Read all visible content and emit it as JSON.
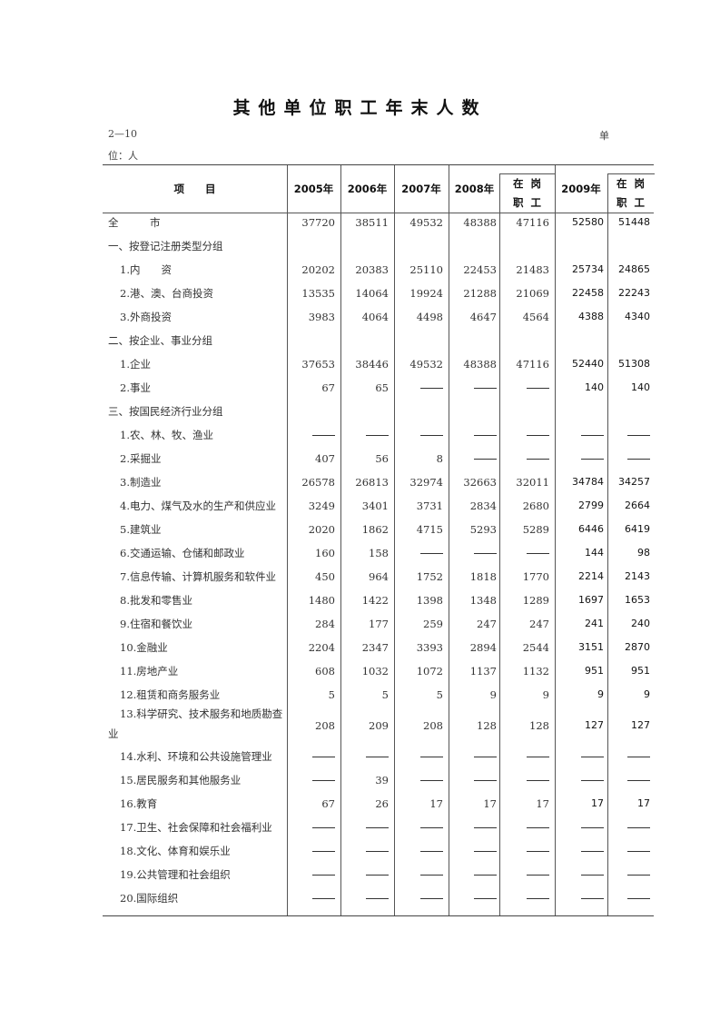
{
  "title": "其他单位职工年末人数",
  "table_code": "2—10",
  "unit_part1": "单",
  "unit_part2": "位：人",
  "headers": {
    "item": "项　　目",
    "columns": [
      "2005年",
      "2006年",
      "2007年",
      "2008年",
      "在岗职工",
      "2009年",
      "在岗职工"
    ],
    "sub_label_top": "在岗",
    "sub_label_bottom": "职工"
  },
  "dash_symbol": "——",
  "rows": [
    {
      "label": "全　　　市",
      "indent": false,
      "values": [
        37720,
        38511,
        49532,
        48388,
        47116,
        52580,
        51448
      ]
    },
    {
      "label": "一、按登记注册类型分组",
      "indent": false,
      "values": null
    },
    {
      "label": "1.内　　资",
      "indent": true,
      "values": [
        20202,
        20383,
        25110,
        22453,
        21483,
        25734,
        24865
      ]
    },
    {
      "label": "2.港、澳、台商投资",
      "indent": true,
      "values": [
        13535,
        14064,
        19924,
        21288,
        21069,
        22458,
        22243
      ]
    },
    {
      "label": "3.外商投资",
      "indent": true,
      "values": [
        3983,
        4064,
        4498,
        4647,
        4564,
        4388,
        4340
      ]
    },
    {
      "label": "二、按企业、事业分组",
      "indent": false,
      "values": null
    },
    {
      "label": "1.企业",
      "indent": true,
      "values": [
        37653,
        38446,
        49532,
        48388,
        47116,
        52440,
        51308
      ]
    },
    {
      "label": "2.事业",
      "indent": true,
      "values": [
        67,
        65,
        null,
        null,
        null,
        140,
        140
      ]
    },
    {
      "label": "三、按国民经济行业分组",
      "indent": false,
      "values": null
    },
    {
      "label": "1.农、林、牧、渔业",
      "indent": true,
      "values": [
        null,
        null,
        null,
        null,
        null,
        null,
        null
      ]
    },
    {
      "label": "2.采掘业",
      "indent": true,
      "values": [
        407,
        56,
        8,
        null,
        null,
        null,
        null
      ]
    },
    {
      "label": "3.制造业",
      "indent": true,
      "values": [
        26578,
        26813,
        32974,
        32663,
        32011,
        34784,
        34257
      ]
    },
    {
      "label": "4.电力、煤气及水的生产和供应业",
      "indent": true,
      "values": [
        3249,
        3401,
        3731,
        2834,
        2680,
        2799,
        2664
      ]
    },
    {
      "label": "5.建筑业",
      "indent": true,
      "values": [
        2020,
        1862,
        4715,
        5293,
        5289,
        6446,
        6419
      ]
    },
    {
      "label": "6.交通运输、仓储和邮政业",
      "indent": true,
      "values": [
        160,
        158,
        null,
        null,
        null,
        144,
        98
      ]
    },
    {
      "label": "7.信息传输、计算机服务和软件业",
      "indent": true,
      "values": [
        450,
        964,
        1752,
        1818,
        1770,
        2214,
        2143
      ]
    },
    {
      "label": "8.批发和零售业",
      "indent": true,
      "values": [
        1480,
        1422,
        1398,
        1348,
        1289,
        1697,
        1653
      ]
    },
    {
      "label": "9.住宿和餐饮业",
      "indent": true,
      "values": [
        284,
        177,
        259,
        247,
        247,
        241,
        240
      ]
    },
    {
      "label": "10.金融业",
      "indent": true,
      "values": [
        2204,
        2347,
        3393,
        2894,
        2544,
        3151,
        2870
      ]
    },
    {
      "label": "11.房地产业",
      "indent": true,
      "values": [
        608,
        1032,
        1072,
        1137,
        1132,
        951,
        951
      ]
    },
    {
      "label": "12.租赁和商务服务业",
      "indent": true,
      "values": [
        5,
        5,
        5,
        9,
        9,
        9,
        9
      ]
    },
    {
      "label": "13.科学研究、技术服务和地质勘查业",
      "indent": true,
      "wrap": true,
      "values": [
        208,
        209,
        208,
        128,
        128,
        127,
        127
      ]
    },
    {
      "label": "14.水利、环境和公共设施管理业",
      "indent": true,
      "values": [
        null,
        null,
        null,
        null,
        null,
        null,
        null
      ]
    },
    {
      "label": "15.居民服务和其他服务业",
      "indent": true,
      "values": [
        null,
        39,
        null,
        null,
        null,
        null,
        null
      ]
    },
    {
      "label": "16.教育",
      "indent": true,
      "values": [
        67,
        26,
        17,
        17,
        17,
        17,
        17
      ]
    },
    {
      "label": "17.卫生、社会保障和社会福利业",
      "indent": true,
      "values": [
        null,
        null,
        null,
        null,
        null,
        null,
        null
      ]
    },
    {
      "label": "18.文化、体育和娱乐业",
      "indent": true,
      "values": [
        null,
        null,
        null,
        null,
        null,
        null,
        null
      ]
    },
    {
      "label": "19.公共管理和社会组织",
      "indent": true,
      "values": [
        null,
        null,
        null,
        null,
        null,
        null,
        null
      ]
    },
    {
      "label": "20.国际组织",
      "indent": true,
      "values": [
        null,
        null,
        null,
        null,
        null,
        null,
        null
      ]
    }
  ]
}
